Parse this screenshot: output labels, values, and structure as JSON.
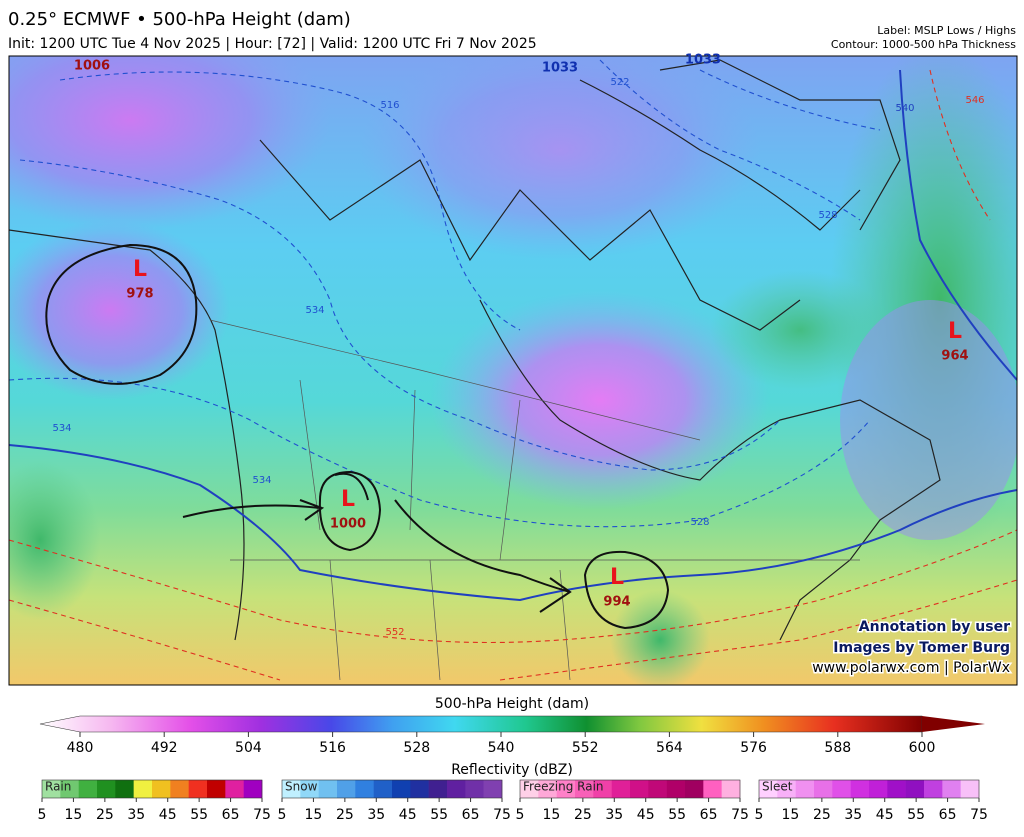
{
  "header": {
    "title": "0.25° ECMWF • 500-hPa Height (dam)",
    "subtitle": "Init: 1200 UTC Tue 4 Nov 2025 | Hour: [72] | Valid: 1200 UTC Fri 7 Nov 2025",
    "label_note": "Label: MSLP Lows / Highs",
    "contour_note": "Contour: 1000-500 hPa Thickness"
  },
  "map": {
    "lows": [
      {
        "symbol": "L",
        "value": "978"
      },
      {
        "symbol": "L",
        "value": "1000"
      },
      {
        "symbol": "L",
        "value": "994"
      },
      {
        "symbol": "L",
        "value": "964"
      }
    ],
    "highs": [
      "1006",
      "1033",
      "1033"
    ],
    "contour_labels": [
      "516",
      "522",
      "534",
      "534",
      "540",
      "534",
      "528",
      "528",
      "552",
      "546"
    ],
    "credits": [
      "Annotation by user",
      "Images by Tomer Burg",
      "www.polarwx.com | PolarWx"
    ]
  },
  "height_scale": {
    "title": "500-hPa Height (dam)",
    "ticks": [
      480,
      492,
      504,
      516,
      528,
      540,
      552,
      564,
      576,
      588,
      600
    ]
  },
  "reflectivity": {
    "title": "Reflectivity (dBZ)",
    "legends": [
      {
        "name": "Rain",
        "ticks": [
          5,
          15,
          25,
          35,
          45,
          55,
          65,
          75
        ]
      },
      {
        "name": "Snow",
        "ticks": [
          5,
          15,
          25,
          35,
          45,
          55,
          65,
          75
        ]
      },
      {
        "name": "Freezing Rain",
        "ticks": [
          5,
          15,
          25,
          35,
          45,
          55,
          65,
          75
        ]
      },
      {
        "name": "Sleet",
        "ticks": [
          5,
          15,
          25,
          35,
          45,
          55,
          65,
          75
        ]
      }
    ]
  }
}
